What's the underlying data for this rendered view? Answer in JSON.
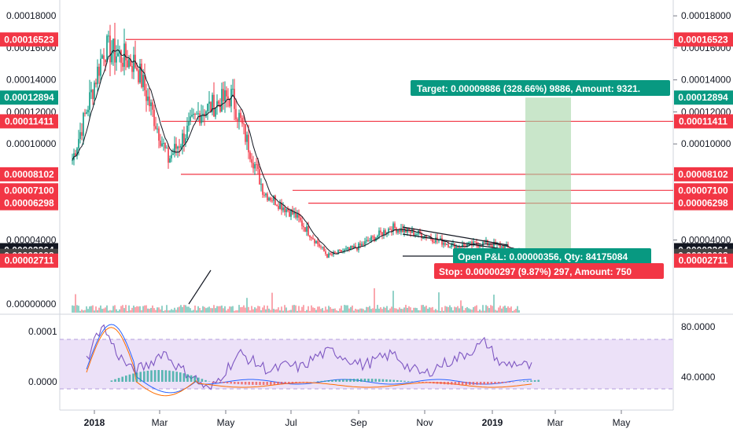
{
  "chart_data": [
    {
      "type": "candlestick",
      "x": [
        "2017-12",
        "2018-01",
        "2018-02",
        "2018-03",
        "2018-04",
        "2018-05",
        "2018-06",
        "2018-07",
        "2018-08",
        "2018-09",
        "2018-10",
        "2018-11",
        "2018-12",
        "2019-01",
        "2019-02"
      ],
      "series": [
        {
          "price_close_approx": [
            9e-05,
            0.00016,
            0.00015,
            9e-05,
            0.00012,
            0.00013,
            7e-05,
            5.5e-05,
            3e-05,
            3.6e-05,
            4.8e-05,
            4.3e-05,
            3.6e-05,
            3.8e-05,
            3.3e-05
          ]
        }
      ],
      "ylim": [
        0.0,
        0.00019
      ],
      "right_axis": {
        "ticks": [
          "0.00018000",
          "0.00016000",
          "0.00014000",
          "0.00012000",
          "0.00010000",
          "0.00004000"
        ]
      },
      "left_axis": {
        "ticks": [
          "0.00018000",
          "0.00016000",
          "0.00014000",
          "0.00012000",
          "0.00010000",
          "0.00004000",
          "0.00000000"
        ]
      },
      "levels": [
        {
          "label": "0.00016523",
          "value": 0.00016523,
          "color": "#f23645"
        },
        {
          "label": "0.00012894",
          "value": 0.00012894,
          "color": "#089981"
        },
        {
          "label": "0.00011411",
          "value": 0.00011411,
          "color": "#f23645"
        },
        {
          "label": "0.00008102",
          "value": 8.102e-05,
          "color": "#f23645"
        },
        {
          "label": "0.00007100",
          "value": 7.1e-05,
          "color": "#f23645"
        },
        {
          "label": "0.00006298",
          "value": 6.298e-05,
          "color": "#f23645"
        },
        {
          "label": "0.00003364",
          "value": 3.364e-05,
          "color": "#131722"
        },
        {
          "label": "0.00003008",
          "value": 3.008e-05,
          "color": "#131722"
        },
        {
          "label": "0.00002711",
          "value": 2.711e-05,
          "color": "#f23645"
        }
      ],
      "position": {
        "entry": 3.008e-05,
        "target": 0.00012894,
        "stop": 2.711e-05,
        "target_label": "Target: 0.00009886 (328.66%) 9886, Amount: 9321.",
        "pnl_label": "Open P&L: 0.00000356, Qty: 84175084",
        "stop_label": "Stop: 0.00000297 (9.87%) 297, Amount: 750"
      }
    },
    {
      "type": "line",
      "indicator_axis": {
        "left_ticks": [
          "0.0001",
          "0.0000"
        ],
        "right_ticks": [
          "80.0000",
          "40.0000"
        ]
      },
      "rsi_series": [
        55,
        85,
        60,
        45,
        50,
        62,
        48,
        40,
        28,
        45,
        60,
        52,
        45,
        50,
        48,
        58,
        62,
        56,
        50,
        55,
        60,
        48,
        42,
        50,
        55,
        62,
        70,
        50,
        52,
        48
      ]
    }
  ],
  "time_axis": {
    "labels": [
      "2018",
      "Mar",
      "May",
      "Jul",
      "Sep",
      "Nov",
      "2019",
      "Mar",
      "May"
    ]
  }
}
